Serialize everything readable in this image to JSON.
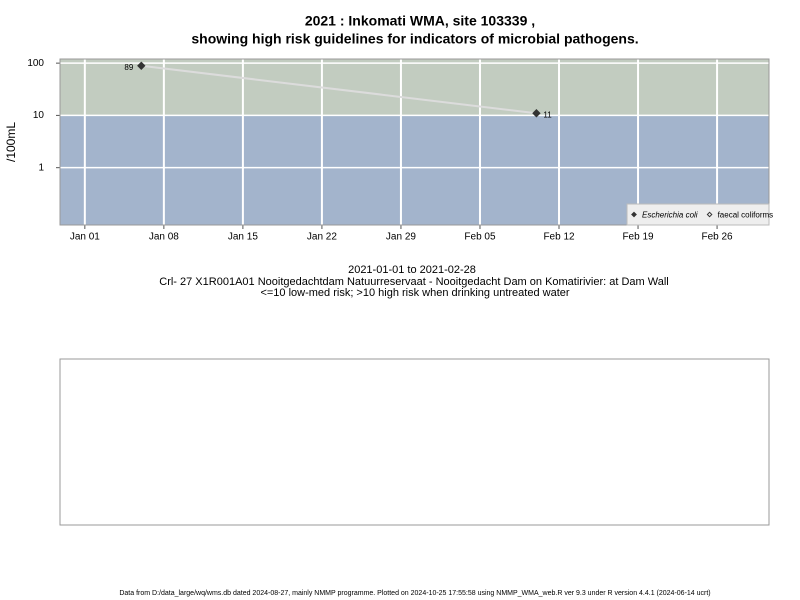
{
  "chart_data": {
    "type": "line",
    "title": [
      "2021 : Inkomati WMA, site 103339 ,",
      "showing high risk guidelines for indicators of microbial pathogens."
    ],
    "y_label": "/100mL",
    "log_y": true,
    "ylim": [
      0.08,
      120
    ],
    "yticks": [
      1,
      10,
      100
    ],
    "xlim": [
      -1.2,
      61.6
    ],
    "xticks": [
      {
        "value": 1,
        "label": "Jan 01"
      },
      {
        "value": 8,
        "label": "Jan 08"
      },
      {
        "value": 15,
        "label": "Jan 15"
      },
      {
        "value": 22,
        "label": "Jan 22"
      },
      {
        "value": 29,
        "label": "Jan 29"
      },
      {
        "value": 36,
        "label": "Feb 05"
      },
      {
        "value": 43,
        "label": "Feb 12"
      },
      {
        "value": 50,
        "label": "Feb 19"
      },
      {
        "value": 57,
        "label": "Feb 26"
      }
    ],
    "grid": true,
    "threshold": 10,
    "high_band_color": "#c2ccc0",
    "low_band_color": "#a3b4cc",
    "line_color": "#dcdcdc",
    "legend": "bottom-right",
    "series": [
      {
        "name": "Escherichia coli",
        "color": "#333333",
        "marker": "filled-diamond",
        "x": [
          6,
          41
        ],
        "values": [
          89,
          11
        ]
      },
      {
        "name": "faecal coliforms",
        "color": "#333333",
        "marker": "open-diamond",
        "x": [],
        "values": []
      }
    ],
    "caption": [
      "2021-01-01 to 2021-02-28",
      "Crl- 27 X1R001A01 Nooitgedachtdam Natuurreservaat - Nooitgedacht Dam on Komatirivier: at Dam Wall",
      "<=10 low-med risk; >10 high risk when drinking untreated water"
    ],
    "footer": "Data from D:/data_large/wq/wms.db dated 2024-08-27, mainly NMMP programme. Plotted on 2024-10-25 17:55:58 using NMMP_WMA_web.R ver 9.3 under R version 4.4.1 (2024-06-14 ucrt)"
  }
}
